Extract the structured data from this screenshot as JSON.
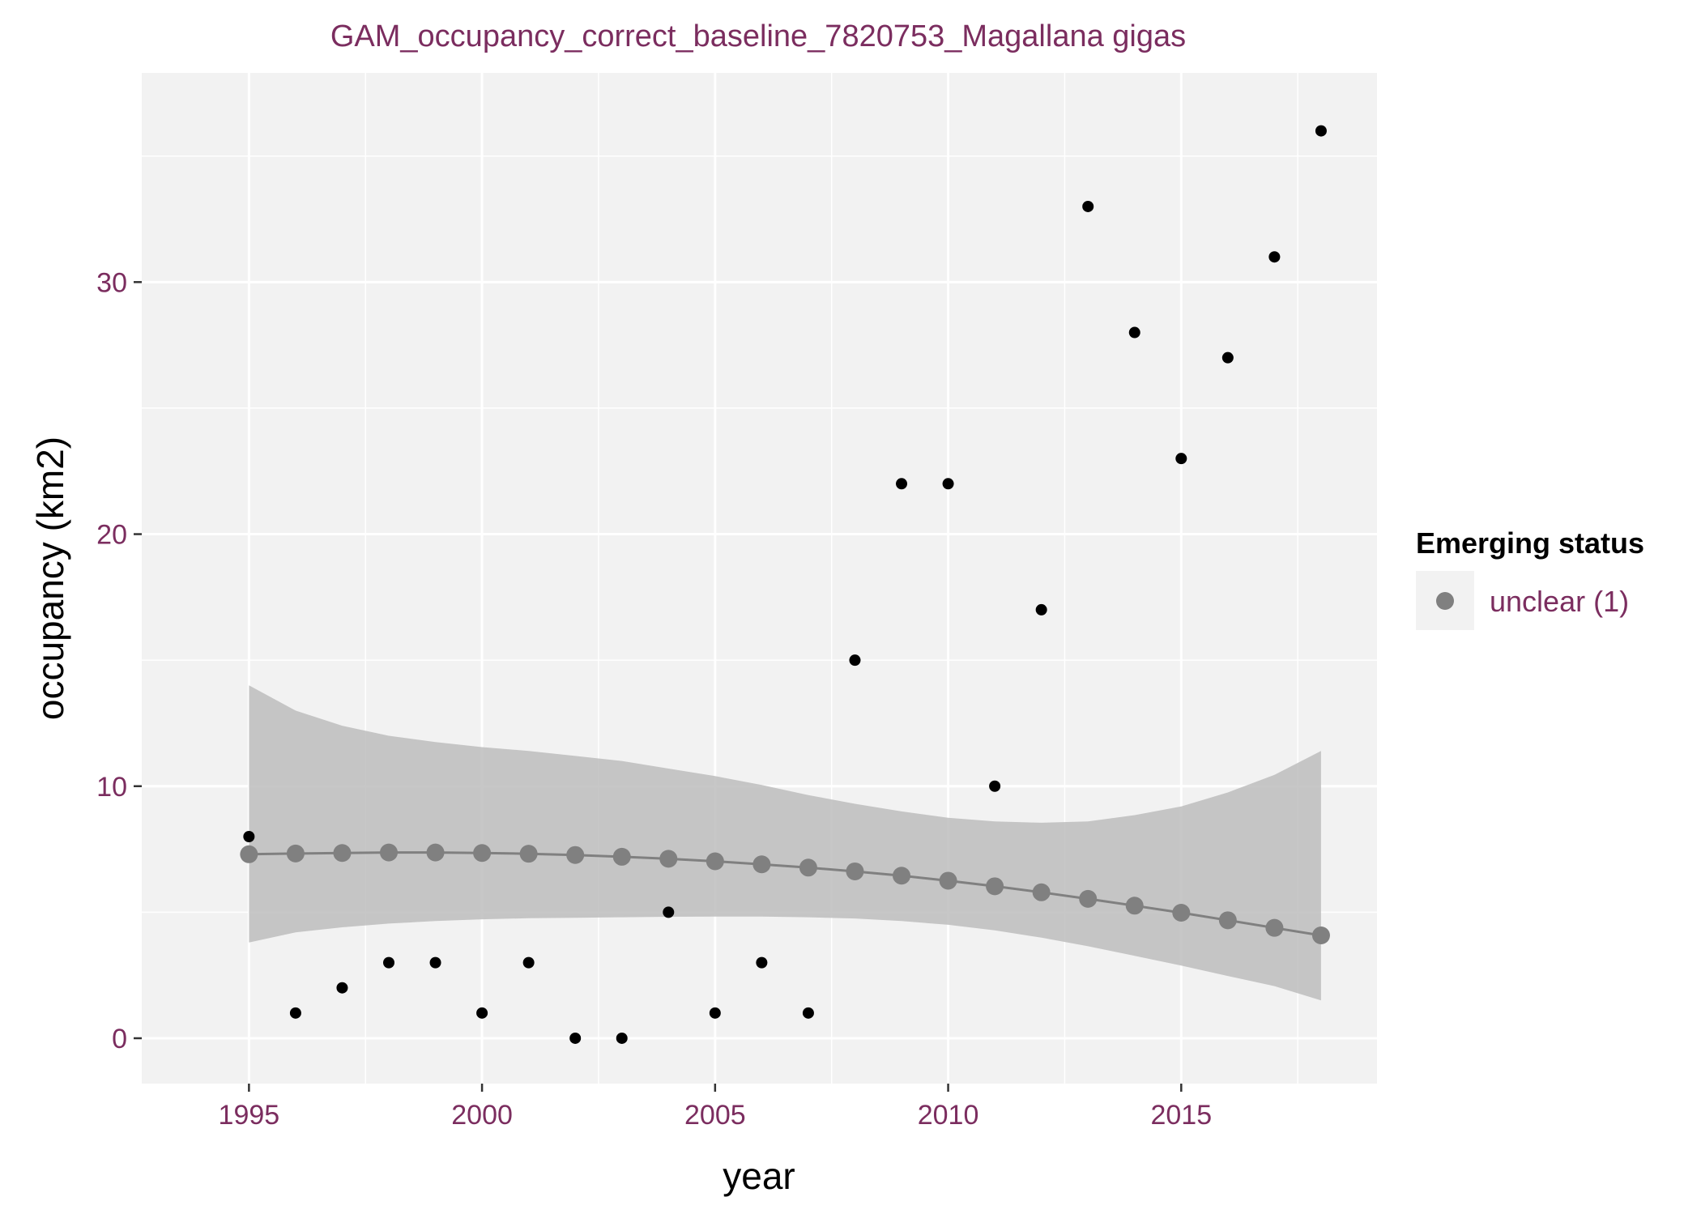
{
  "chart_data": {
    "type": "scatter",
    "title": "GAM_occupancy_correct_baseline_7820753_Magallana gigas",
    "xlabel": "year",
    "ylabel": "occupancy (km2)",
    "xlim": [
      1992.7,
      2019.2
    ],
    "ylim": [
      -1.8,
      38.3
    ],
    "x_ticks": [
      1995,
      2000,
      2005,
      2010,
      2015
    ],
    "y_ticks": [
      0,
      10,
      20,
      30
    ],
    "grid": true,
    "legend": {
      "title": "Emerging status",
      "entries": [
        {
          "label": "unclear (1)",
          "color": "#808080"
        }
      ],
      "placement": "right"
    },
    "observed": {
      "x": [
        1995,
        1996,
        1997,
        1998,
        1999,
        2000,
        2001,
        2002,
        2003,
        2004,
        2005,
        2006,
        2007,
        2008,
        2009,
        2010,
        2011,
        2012,
        2013,
        2014,
        2015,
        2016,
        2017,
        2018
      ],
      "y": [
        8,
        1,
        2,
        3,
        3,
        1,
        3,
        0,
        0,
        5,
        1,
        3,
        1,
        15,
        22,
        22,
        10,
        17,
        33,
        28,
        23,
        27,
        31,
        36
      ],
      "color": "#000000"
    },
    "fitted": {
      "name": "unclear (1)",
      "x": [
        1995,
        1996,
        1997,
        1998,
        1999,
        2000,
        2001,
        2002,
        2003,
        2004,
        2005,
        2006,
        2007,
        2008,
        2009,
        2010,
        2011,
        2012,
        2013,
        2014,
        2015,
        2016,
        2017,
        2018
      ],
      "y": [
        7.3,
        7.33,
        7.35,
        7.37,
        7.37,
        7.35,
        7.32,
        7.27,
        7.2,
        7.12,
        7.02,
        6.9,
        6.77,
        6.62,
        6.45,
        6.25,
        6.03,
        5.79,
        5.53,
        5.26,
        4.98,
        4.68,
        4.38,
        4.08
      ],
      "lower": [
        3.8,
        4.2,
        4.4,
        4.55,
        4.65,
        4.72,
        4.76,
        4.78,
        4.8,
        4.82,
        4.83,
        4.83,
        4.8,
        4.75,
        4.65,
        4.5,
        4.28,
        3.99,
        3.65,
        3.27,
        2.88,
        2.47,
        2.07,
        1.5
      ],
      "upper": [
        14,
        13,
        12.4,
        12.0,
        11.75,
        11.55,
        11.4,
        11.2,
        11.0,
        10.7,
        10.4,
        10.05,
        9.65,
        9.3,
        9.0,
        8.75,
        8.6,
        8.55,
        8.6,
        8.85,
        9.2,
        9.75,
        10.45,
        11.4
      ],
      "color": "#808080",
      "ribbon_color": "#bdbdbd"
    },
    "panel_color": "#f2f2f2",
    "grid_color": "#ffffff"
  }
}
